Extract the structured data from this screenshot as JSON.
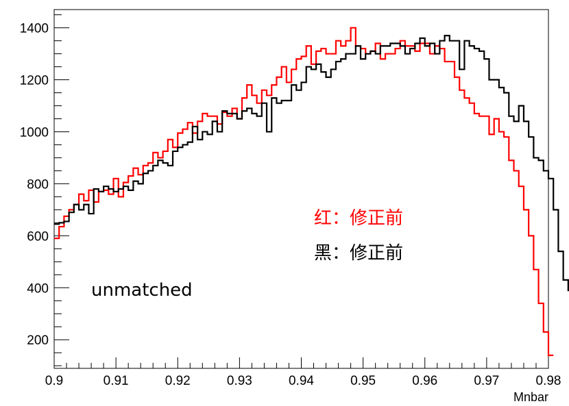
{
  "chart_data": {
    "type": "line",
    "title": "",
    "xlabel": "Mnbar",
    "ylabel": "",
    "xlim": [
      0.9,
      0.98
    ],
    "ylim": [
      90,
      1470
    ],
    "grid": false,
    "x_ticks": [
      "0.9",
      "0.91",
      "0.92",
      "0.93",
      "0.94",
      "0.95",
      "0.96",
      "0.97",
      "0.98"
    ],
    "y_ticks": [
      "200",
      "400",
      "600",
      "800",
      "1000",
      "1200",
      "1400"
    ],
    "bin_edges_start": 0.9,
    "bin_width": 0.0008,
    "series": [
      {
        "color": "#ff0000",
        "values": [
          590,
          635,
          675,
          700,
          720,
          760,
          735,
          775,
          730,
          770,
          775,
          760,
          820,
          750,
          805,
          830,
          860,
          835,
          870,
          880,
          920,
          900,
          925,
          970,
          940,
          995,
          1010,
          1035,
          995,
          1040,
          1070,
          1060,
          1060,
          1030,
          1075,
          1060,
          1090,
          1050,
          1130,
          1180,
          1140,
          1110,
          1160,
          1140,
          1180,
          1210,
          1250,
          1190,
          1240,
          1280,
          1290,
          1330,
          1260,
          1310,
          1320,
          1300,
          1300,
          1350,
          1330,
          1350,
          1400,
          1330,
          1320,
          1300,
          1310,
          1340,
          1280,
          1300,
          1300,
          1320,
          1350,
          1330,
          1330,
          1310,
          1340,
          1340,
          1300,
          1330,
          1320,
          1270,
          1270,
          1210,
          1160,
          1130,
          1110,
          1070,
          1060,
          1060,
          990,
          1050,
          1000,
          980,
          890,
          850,
          790,
          700,
          600,
          470,
          340,
          230,
          140
        ]
      },
      {
        "color": "#000000",
        "values": [
          645,
          650,
          655,
          690,
          720,
          700,
          720,
          685,
          780,
          770,
          790,
          780,
          770,
          780,
          790,
          775,
          810,
          800,
          840,
          850,
          870,
          890,
          880,
          870,
          925,
          940,
          950,
          960,
          1020,
          970,
          1000,
          990,
          1040,
          1000,
          1080,
          1070,
          1070,
          1050,
          1080,
          1090,
          1070,
          1060,
          1110,
          1000,
          1130,
          1110,
          1120,
          1120,
          1180,
          1160,
          1190,
          1250,
          1240,
          1260,
          1230,
          1210,
          1240,
          1270,
          1280,
          1300,
          1300,
          1330,
          1280,
          1300,
          1310,
          1300,
          1330,
          1330,
          1340,
          1340,
          1330,
          1300,
          1320,
          1340,
          1360,
          1330,
          1340,
          1300,
          1350,
          1370,
          1350,
          1350,
          1240,
          1350,
          1330,
          1320,
          1310,
          1280,
          1200,
          1200,
          1170,
          1150,
          1060,
          1040,
          1100,
          1040,
          980,
          900,
          890,
          850,
          820,
          700,
          540,
          430,
          390
        ]
      }
    ],
    "annotations": [
      {
        "text": "红：修正前",
        "color": "#ff0000"
      },
      {
        "text": "黑：修正前",
        "color": "#000000"
      },
      {
        "text": "unmatched",
        "color": "#000000"
      }
    ]
  }
}
